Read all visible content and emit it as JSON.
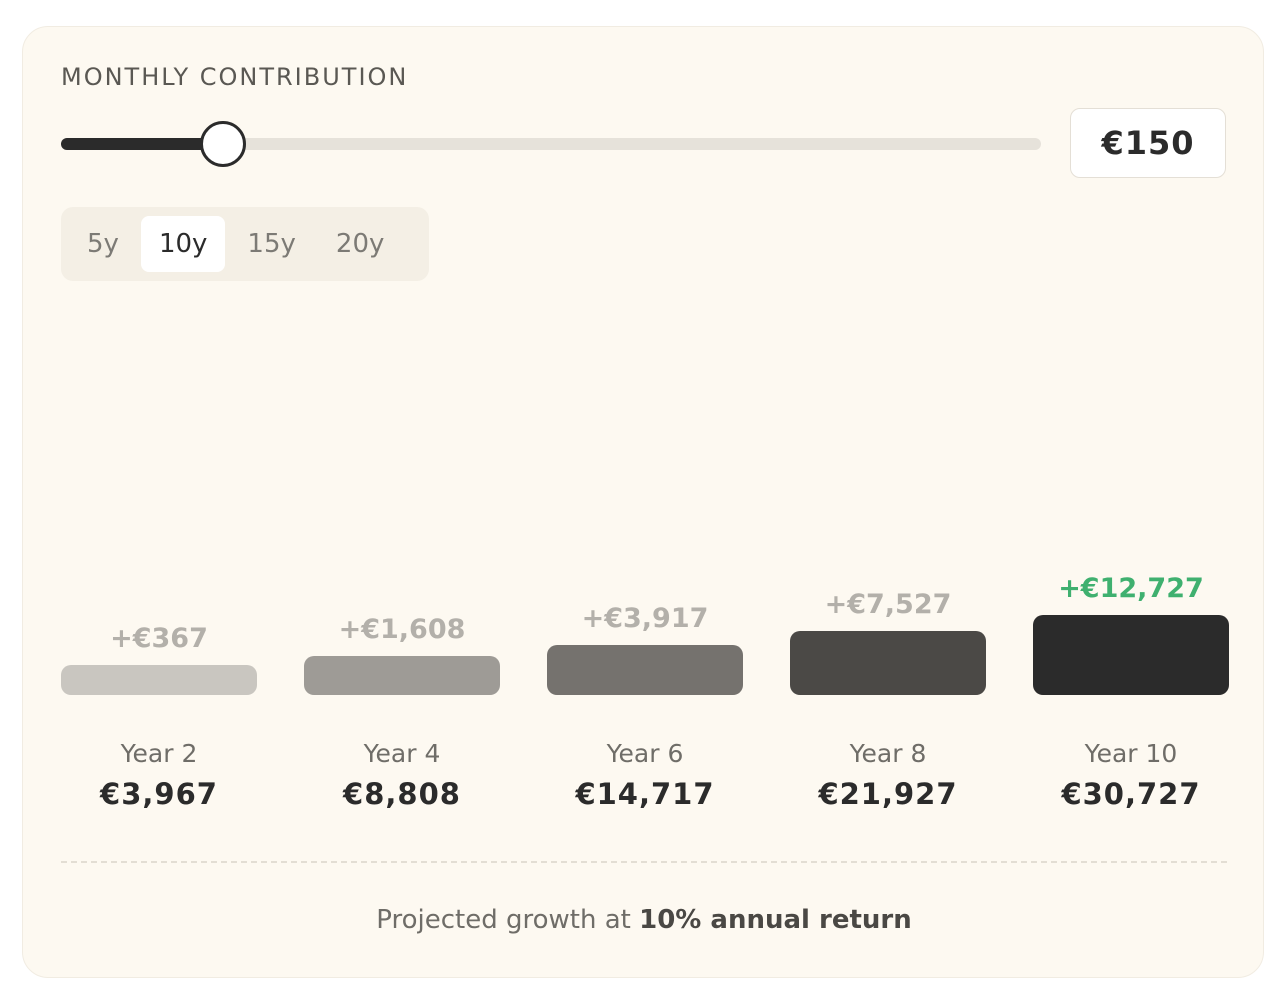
{
  "contribution": {
    "label": "MONTHLY CONTRIBUTION",
    "value_display": "€150",
    "slider_fraction": 0.165
  },
  "periods": {
    "options": [
      "5y",
      "10y",
      "15y",
      "20y"
    ],
    "selected": "10y"
  },
  "chart_data": {
    "type": "bar",
    "categories": [
      "Year 2",
      "Year 4",
      "Year 6",
      "Year 8",
      "Year 10"
    ],
    "values": [
      3967,
      8808,
      14717,
      21927,
      30727
    ],
    "value_labels": [
      "€3,967",
      "€8,808",
      "€14,717",
      "€21,927",
      "€30,727"
    ],
    "gain_labels": [
      "+€367",
      "+€1,608",
      "+€3,917",
      "+€7,527",
      "+€12,727"
    ],
    "bar_colors": [
      "#c9c6c0",
      "#9e9b96",
      "#75726e",
      "#4b4946",
      "#2b2b2b"
    ],
    "highlight_color": "#3fb06f"
  },
  "footer": {
    "prefix": "Projected growth at ",
    "emphasis": "10% annual return"
  }
}
